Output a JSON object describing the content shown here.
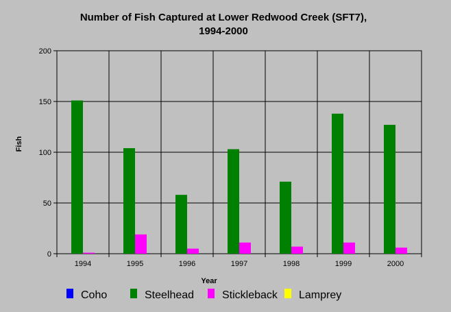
{
  "chart_data": {
    "type": "bar",
    "title_line1": "Number of Fish Captured at Lower Redwood Creek (SFT7),",
    "title_line2": "1994-2000",
    "xlabel": "Year",
    "ylabel": "Fish",
    "ylim": [
      0,
      200
    ],
    "yticks": [
      0,
      50,
      100,
      150,
      200
    ],
    "grid": true,
    "legend_position": "bottom",
    "categories": [
      "1994",
      "1995",
      "1996",
      "1997",
      "1998",
      "1999",
      "2000"
    ],
    "series": [
      {
        "name": "Coho",
        "color": "#0000ff",
        "values": [
          0,
          0,
          0,
          0,
          0,
          0,
          0
        ]
      },
      {
        "name": "Steelhead",
        "color": "#008000",
        "values": [
          151,
          104,
          58,
          103,
          71,
          138,
          127
        ]
      },
      {
        "name": "Stickleback",
        "color": "#ff00ff",
        "values": [
          1,
          19,
          5,
          11,
          7,
          11,
          6
        ]
      },
      {
        "name": "Lamprey",
        "color": "#ffff00",
        "values": [
          0,
          0,
          0,
          0,
          0,
          0,
          0
        ]
      }
    ]
  }
}
